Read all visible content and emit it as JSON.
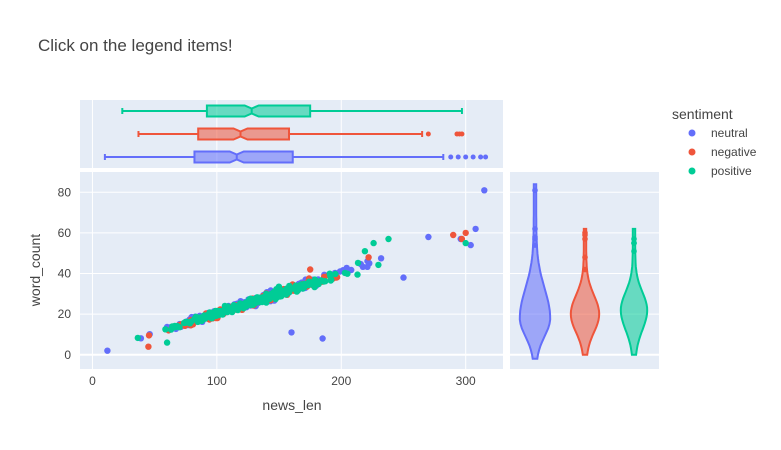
{
  "title": "Click on the legend items!",
  "legend": {
    "title": "sentiment",
    "placement": "top-right",
    "items": [
      {
        "label": "neutral",
        "color": "#636efa"
      },
      {
        "label": "negative",
        "color": "#EF553B"
      },
      {
        "label": "positive",
        "color": "#00cc96"
      }
    ]
  },
  "chart_data": {
    "type": "scatter",
    "title": "Click on the legend items!",
    "xlabel": "news_len",
    "ylabel": "word_count",
    "xlim": [
      -10,
      330
    ],
    "ylim": [
      -7,
      90
    ],
    "x_ticks": [
      0,
      100,
      200,
      300
    ],
    "y_ticks": [
      0,
      20,
      40,
      60,
      80
    ],
    "grid": true,
    "marginal_x": "box",
    "marginal_y": "violin",
    "series": [
      {
        "name": "neutral",
        "color": "#636efa",
        "trend": {
          "slope": 0.2,
          "intercept": 0.5,
          "x_range": [
            8,
            315
          ]
        },
        "outliers": [
          [
            315,
            81
          ],
          [
            308,
            62
          ],
          [
            296,
            57
          ],
          [
            304,
            54
          ],
          [
            270,
            58
          ],
          [
            250,
            38
          ],
          [
            160,
            11
          ],
          [
            185,
            8
          ],
          [
            12,
            2
          ]
        ],
        "box": {
          "min": 10,
          "q1": 82,
          "median": 116,
          "q3": 161,
          "max": 282,
          "outliers": [
            288,
            294,
            300,
            306,
            312,
            316
          ]
        },
        "violin": {
          "min": -2,
          "max": 84,
          "peak_y": 18,
          "width": 14
        }
      },
      {
        "name": "negative",
        "color": "#EF553B",
        "trend": {
          "slope": 0.198,
          "intercept": 0.5,
          "x_range": [
            15,
            300
          ]
        },
        "outliers": [
          [
            297,
            57
          ],
          [
            290,
            59
          ],
          [
            300,
            60
          ],
          [
            222,
            48
          ],
          [
            175,
            42
          ],
          [
            45,
            4
          ]
        ],
        "box": {
          "min": 37,
          "q1": 85,
          "median": 119,
          "q3": 158,
          "max": 265,
          "outliers": [
            270,
            293,
            295,
            297
          ]
        },
        "violin": {
          "min": 0,
          "max": 62,
          "peak_y": 20,
          "width": 13
        }
      },
      {
        "name": "positive",
        "color": "#00cc96",
        "trend": {
          "slope": 0.195,
          "intercept": 1.0,
          "x_range": [
            15,
            300
          ]
        },
        "outliers": [
          [
            238,
            57
          ],
          [
            226,
            55
          ],
          [
            300,
            55
          ],
          [
            219,
            51
          ],
          [
            60,
            6
          ]
        ],
        "box": {
          "min": 24,
          "q1": 92,
          "median": 128,
          "q3": 175,
          "max": 297,
          "outliers": []
        },
        "violin": {
          "min": 0,
          "max": 62,
          "peak_y": 22,
          "width": 12
        }
      }
    ]
  }
}
